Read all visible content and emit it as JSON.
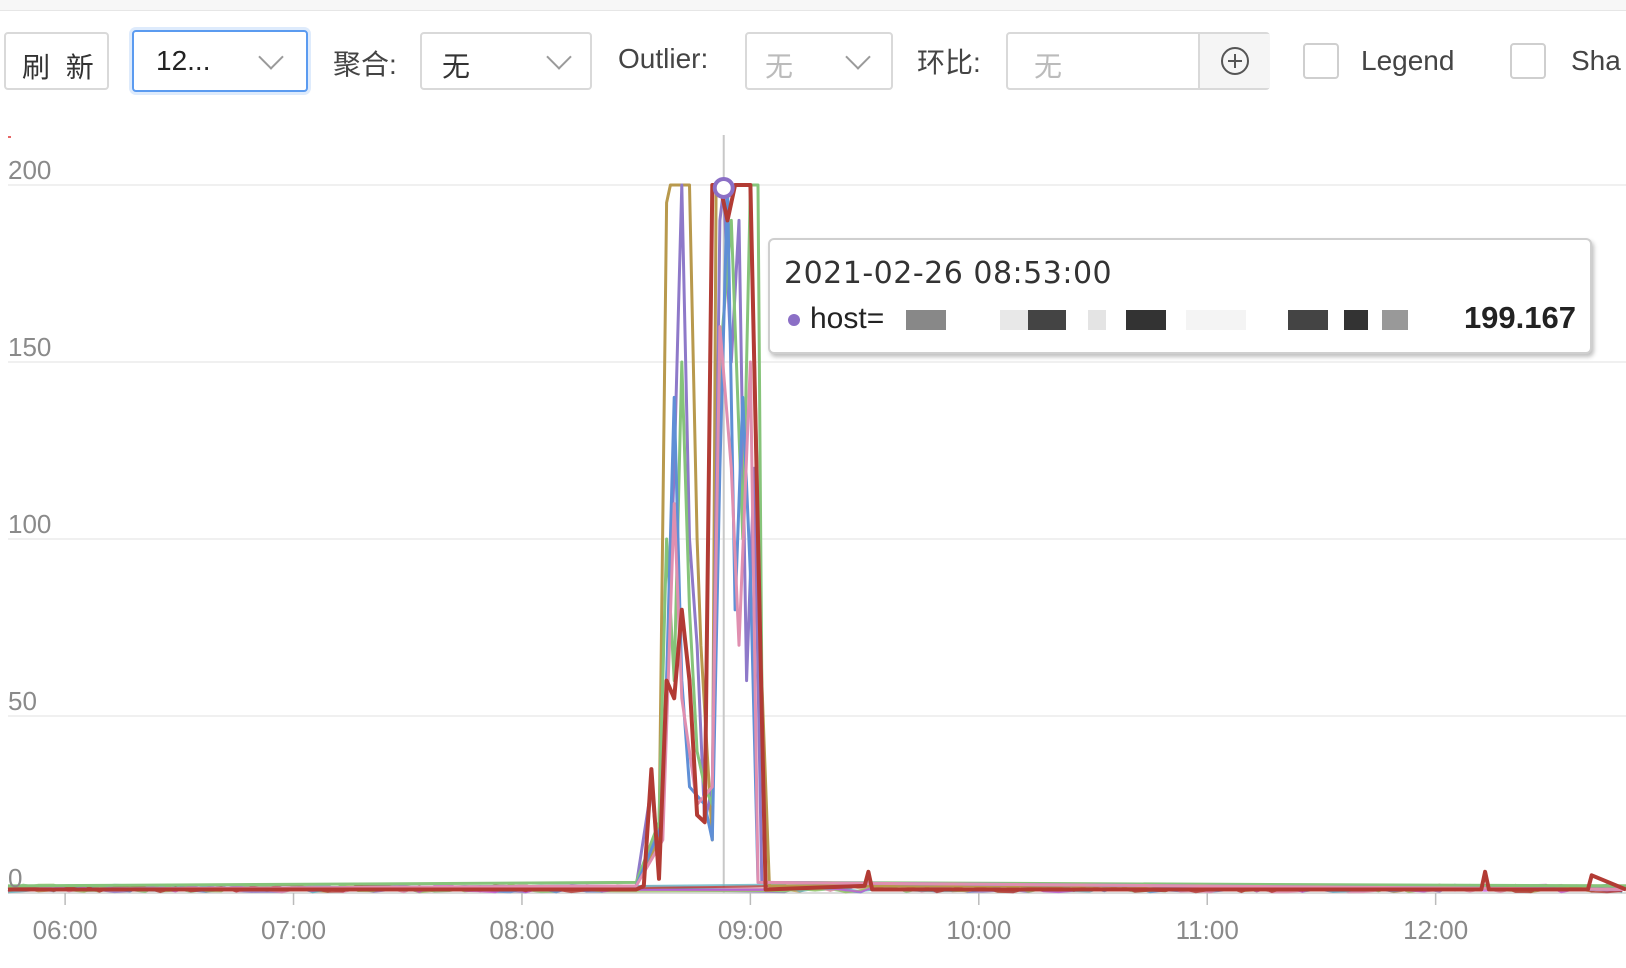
{
  "toolbar": {
    "refresh_label": "刷 新",
    "time_range_value": "12...",
    "aggregate_label": "聚合:",
    "aggregate_value": "无",
    "outlier_label": "Outlier:",
    "outlier_value": "无",
    "compare_label": "环比:",
    "compare_value": "无",
    "legend_label": "Legend",
    "share_label": "Sha"
  },
  "tooltip": {
    "time": "2021-02-26 08:53:00",
    "series_key": "host=",
    "series_value": "199.167",
    "dot_color": "#8b6fc6"
  },
  "icons": {
    "add": "plus-circle-icon",
    "dropdown": "chevron-down-icon"
  },
  "chart_data": {
    "type": "line",
    "y_ticks": [
      "200",
      "150",
      "100",
      "50",
      "0"
    ],
    "x_ticks": [
      "06:00",
      "07:00",
      "08:00",
      "09:00",
      "10:00",
      "11:00",
      "12:00"
    ],
    "ylim": [
      0,
      200
    ],
    "xlim": [
      "05:45",
      "12:50"
    ],
    "grid": true,
    "hover_time": "08:53",
    "colors": [
      "#b8994d",
      "#8e79c9",
      "#86c47a",
      "#5f8fd6",
      "#e08fb0",
      "#64b5c4",
      "#9cc46a",
      "#c45ad6",
      "#b23b34"
    ],
    "series": [
      {
        "color": "#b8994d",
        "points": [
          [
            "05:45",
            1
          ],
          [
            "08:30",
            2
          ],
          [
            "08:36",
            15
          ],
          [
            "08:38",
            195
          ],
          [
            "08:39",
            200
          ],
          [
            "08:44",
            200
          ],
          [
            "08:46",
            100
          ],
          [
            "08:47",
            70
          ],
          [
            "08:50",
            15
          ],
          [
            "08:51",
            200
          ],
          [
            "09:00",
            200
          ],
          [
            "09:03",
            60
          ],
          [
            "09:05",
            2
          ],
          [
            "12:50",
            2
          ]
        ]
      },
      {
        "color": "#8e79c9",
        "points": [
          [
            "05:45",
            1
          ],
          [
            "08:30",
            2
          ],
          [
            "08:34",
            30
          ],
          [
            "08:36",
            8
          ],
          [
            "08:38",
            60
          ],
          [
            "08:40",
            120
          ],
          [
            "08:42",
            200
          ],
          [
            "08:44",
            100
          ],
          [
            "08:46",
            70
          ],
          [
            "08:48",
            20
          ],
          [
            "08:50",
            30
          ],
          [
            "08:52",
            190
          ],
          [
            "08:53",
            199.167
          ],
          [
            "08:55",
            150
          ],
          [
            "08:57",
            190
          ],
          [
            "08:59",
            60
          ],
          [
            "09:01",
            120
          ],
          [
            "09:03",
            3
          ],
          [
            "12:50",
            1
          ]
        ]
      },
      {
        "color": "#86c47a",
        "points": [
          [
            "05:45",
            2
          ],
          [
            "08:30",
            3
          ],
          [
            "08:36",
            20
          ],
          [
            "08:38",
            100
          ],
          [
            "08:40",
            60
          ],
          [
            "08:42",
            150
          ],
          [
            "08:44",
            80
          ],
          [
            "08:46",
            40
          ],
          [
            "08:48",
            30
          ],
          [
            "08:50",
            25
          ],
          [
            "08:52",
            150
          ],
          [
            "08:55",
            190
          ],
          [
            "08:58",
            100
          ],
          [
            "09:00",
            200
          ],
          [
            "09:02",
            200
          ],
          [
            "09:03",
            60
          ],
          [
            "09:04",
            3
          ],
          [
            "12:50",
            2
          ]
        ]
      },
      {
        "color": "#5f8fd6",
        "points": [
          [
            "05:45",
            1
          ],
          [
            "08:30",
            2
          ],
          [
            "08:37",
            20
          ],
          [
            "08:40",
            140
          ],
          [
            "08:42",
            60
          ],
          [
            "08:44",
            30
          ],
          [
            "08:48",
            25
          ],
          [
            "08:50",
            15
          ],
          [
            "08:52",
            120
          ],
          [
            "08:54",
            200
          ],
          [
            "08:56",
            80
          ],
          [
            "08:58",
            140
          ],
          [
            "09:00",
            90
          ],
          [
            "09:02",
            3
          ],
          [
            "12:50",
            1
          ]
        ]
      },
      {
        "color": "#e08fb0",
        "points": [
          [
            "05:45",
            1
          ],
          [
            "08:30",
            2
          ],
          [
            "08:37",
            15
          ],
          [
            "08:40",
            110
          ],
          [
            "08:42",
            55
          ],
          [
            "08:46",
            25
          ],
          [
            "08:50",
            30
          ],
          [
            "08:52",
            160
          ],
          [
            "08:55",
            120
          ],
          [
            "08:57",
            70
          ],
          [
            "09:00",
            150
          ],
          [
            "09:02",
            3
          ],
          [
            "12:50",
            1
          ]
        ]
      },
      {
        "color": "#b23b34",
        "points": [
          [
            "05:45",
            1
          ],
          [
            "08:30",
            1
          ],
          [
            "08:32",
            2
          ],
          [
            "08:34",
            35
          ],
          [
            "08:36",
            4
          ],
          [
            "08:38",
            60
          ],
          [
            "08:40",
            55
          ],
          [
            "08:42",
            80
          ],
          [
            "08:44",
            60
          ],
          [
            "08:46",
            22
          ],
          [
            "08:48",
            20
          ],
          [
            "08:50",
            200
          ],
          [
            "08:52",
            200
          ],
          [
            "08:54",
            190
          ],
          [
            "08:56",
            200
          ],
          [
            "09:00",
            200
          ],
          [
            "09:04",
            1
          ],
          [
            "09:30",
            2
          ],
          [
            "09:31",
            6
          ],
          [
            "09:32",
            1
          ],
          [
            "12:12",
            1
          ],
          [
            "12:13",
            6
          ],
          [
            "12:14",
            1
          ],
          [
            "12:40",
            1
          ],
          [
            "12:41",
            5
          ],
          [
            "12:50",
            1
          ]
        ]
      }
    ]
  }
}
